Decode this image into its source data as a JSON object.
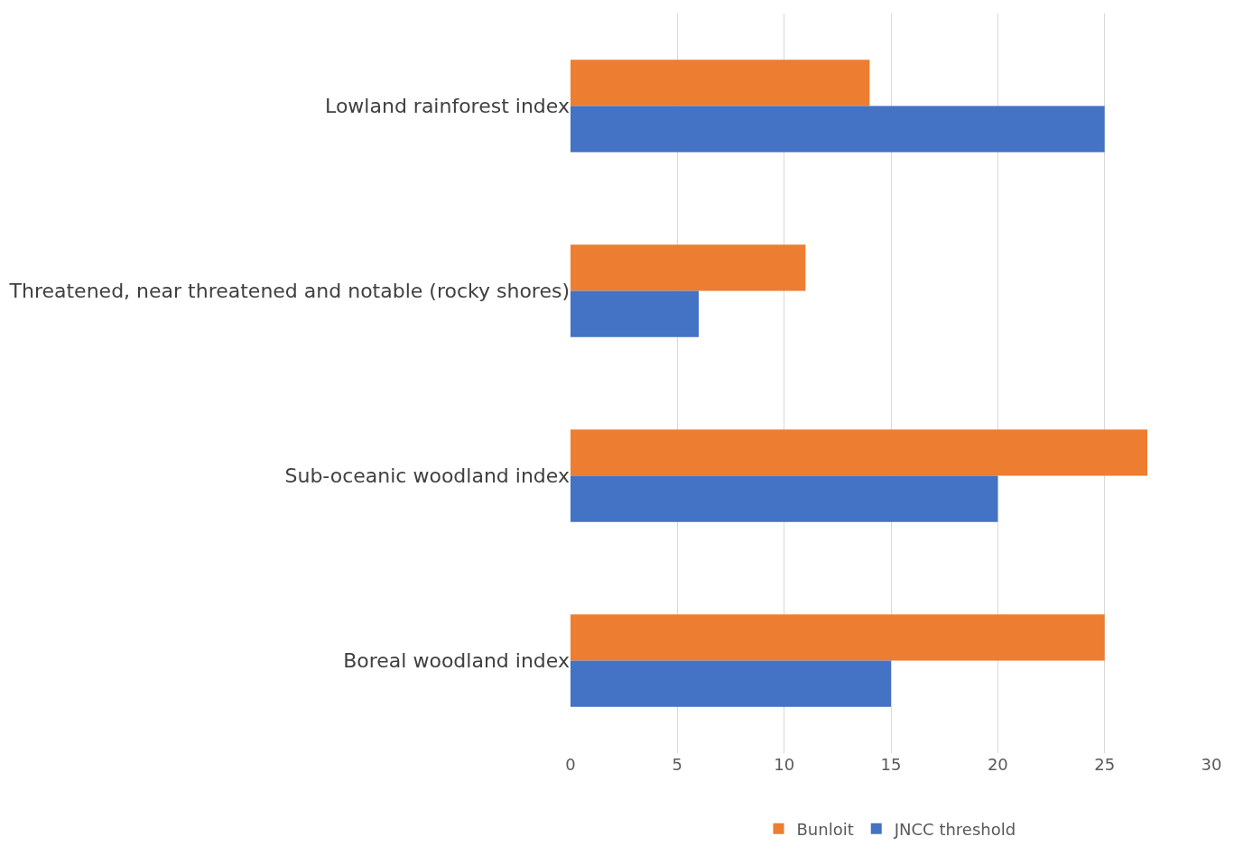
{
  "chart_data": {
    "type": "bar",
    "orientation": "horizontal",
    "categories": [
      "Lowland rainforest index",
      "Threatened, near threatened and notable (rocky shores)",
      "Sub-oceanic woodland index",
      "Boreal woodland index"
    ],
    "series": [
      {
        "name": "Bunloit",
        "color": "#ed7d31",
        "values": [
          14,
          11,
          27,
          25
        ]
      },
      {
        "name": "JNCC threshold",
        "color": "#4472c4",
        "values": [
          25,
          6,
          20,
          15
        ]
      }
    ],
    "xlim": [
      0,
      30
    ],
    "xticks": [
      0,
      5,
      10,
      15,
      20,
      25,
      30
    ],
    "grid": "x",
    "legend": "bottom"
  }
}
